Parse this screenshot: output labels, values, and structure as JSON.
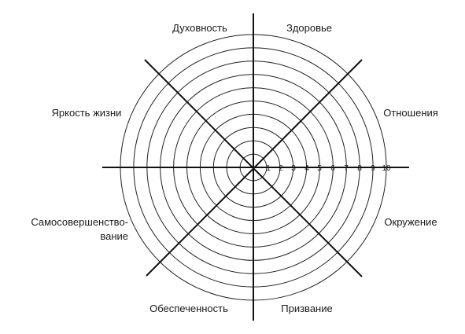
{
  "wheel": {
    "segments": [
      {
        "key": "spirituality",
        "label": "Духовность"
      },
      {
        "key": "health",
        "label": "Здоровье"
      },
      {
        "key": "relations",
        "label": "Отношения"
      },
      {
        "key": "environment",
        "label": "Окружение"
      },
      {
        "key": "calling",
        "label": "Призвание"
      },
      {
        "key": "wealth",
        "label": "Обеспеченность"
      },
      {
        "key": "selfdev_1",
        "label": "Самосовершенство-"
      },
      {
        "key": "selfdev_2",
        "label": "вание"
      },
      {
        "key": "brightness",
        "label": "Яркость жизни"
      }
    ],
    "scale": [
      "1",
      "2",
      "3",
      "4",
      "5",
      "6",
      "7",
      "8",
      "9",
      "10"
    ],
    "ring_count": 10,
    "line_color": "#111111"
  }
}
